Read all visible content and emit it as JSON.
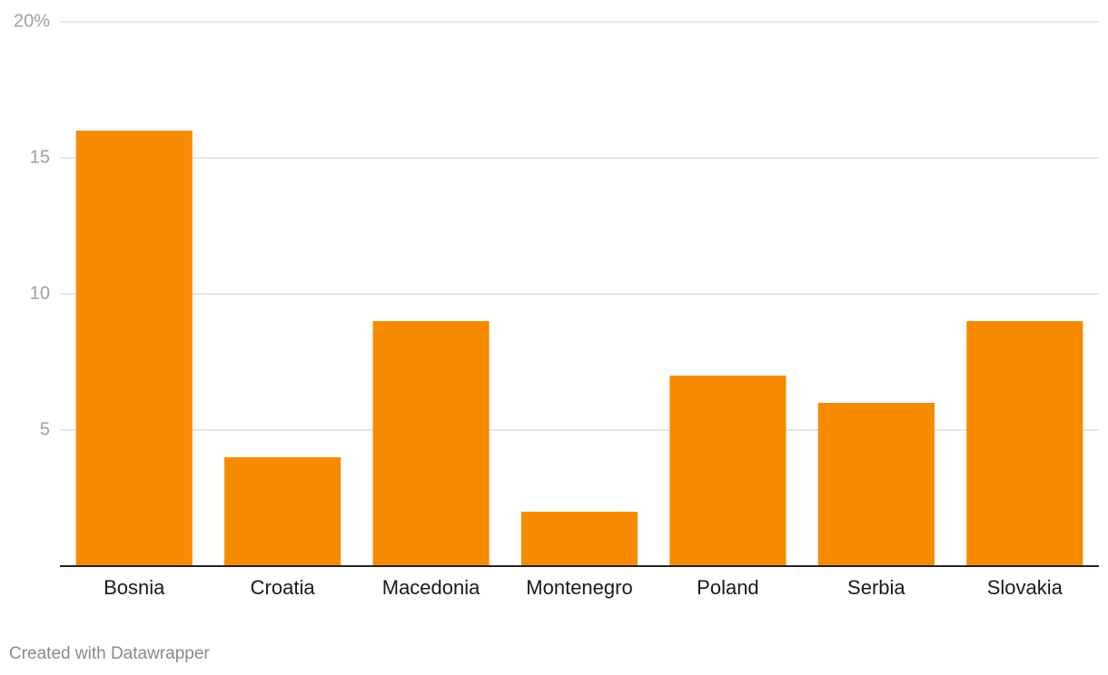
{
  "chart_data": {
    "type": "bar",
    "categories": [
      "Bosnia",
      "Croatia",
      "Macedonia",
      "Montenegro",
      "Poland",
      "Serbia",
      "Slovakia"
    ],
    "values": [
      16,
      4,
      9,
      2,
      7,
      6,
      9
    ],
    "color": "#f68b00",
    "ylim": [
      0,
      20
    ],
    "yticks": [
      5,
      10,
      15,
      {
        "value": 20,
        "label": "20%"
      }
    ],
    "grid": true,
    "credit": "Created with Datawrapper"
  }
}
